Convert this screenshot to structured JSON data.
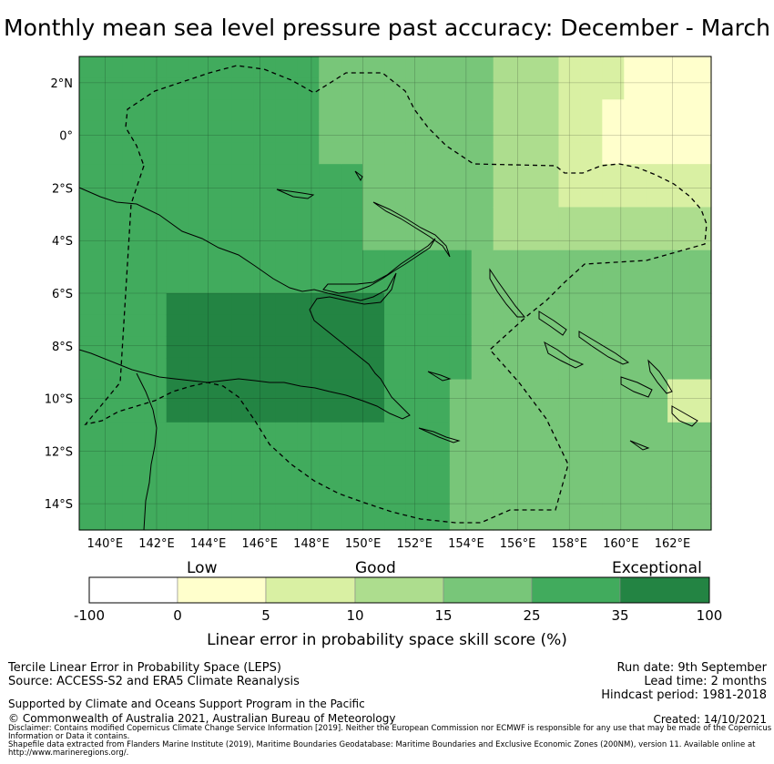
{
  "title": "Monthly mean sea level pressure past accuracy: December - March",
  "map": {
    "lat_ticks": [
      "2°N",
      "0°",
      "2°S",
      "4°S",
      "6°S",
      "8°S",
      "10°S",
      "12°S",
      "14°S"
    ],
    "lon_ticks": [
      "140°E",
      "142°E",
      "144°E",
      "146°E",
      "148°E",
      "150°E",
      "152°E",
      "154°E",
      "156°E",
      "158°E",
      "160°E",
      "162°E"
    ],
    "lat_range": [
      -15,
      3
    ],
    "lon_range": [
      139,
      163.5
    ],
    "grid": true
  },
  "colorbar": {
    "category_labels": {
      "low": "Low",
      "good": "Good",
      "exceptional": "Exceptional"
    },
    "ticks": [
      "-100",
      "0",
      "5",
      "10",
      "15",
      "25",
      "35",
      "100"
    ],
    "colors": [
      "#ffffff",
      "#ffffcc",
      "#d9f0a3",
      "#addd8e",
      "#78c679",
      "#41ab5d",
      "#238443"
    ],
    "label": "Linear error in probability space skill score (%)"
  },
  "footer": {
    "method": "Tercile Linear Error in Probability Space (LEPS)",
    "source": "Source: ACCESS-S2 and ERA5 Climate Reanalysis",
    "run_date": "Run date: 9th September",
    "lead_time": "Lead time: 2 months",
    "hindcast": "Hindcast period: 1981-2018",
    "support": "Supported by Climate and Oceans Support Program in the Pacific",
    "copyright": "© Commonwealth of Australia 2021, Australian Bureau of Meteorology",
    "created": "Created: 14/10/2021",
    "disclaimer": "Disclaimer: Contains modified Copernicus Climate Change Service Information [2019]. Neither the European Commission nor ECMWF is responsible for any use that may be made of the Copernicus Information or Data it contains.",
    "shapefile": "Shapefile data extracted from Flanders Marine Institute (2019), Maritime Boundaries Geodatabase: Maritime Boundaries and Exclusive Economic Zones (200NM), version 11. Available online at http://www.marineregions.org/."
  }
}
